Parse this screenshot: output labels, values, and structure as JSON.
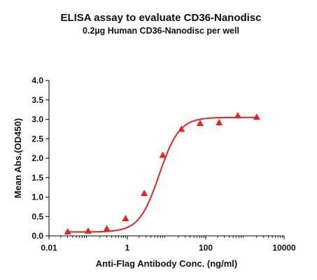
{
  "chart_data": {
    "type": "scatter",
    "title": "ELISA assay to evaluate CD36-Nanodisc",
    "subtitle": "0.2µg Human CD36-Nanodisc per well",
    "xlabel": "Anti-Flag Antibody Conc. (ng/ml)",
    "ylabel": "Mean Abs.(OD450)",
    "x_scale": "log",
    "xlim": [
      0.01,
      10000
    ],
    "ylim": [
      0,
      4.0
    ],
    "x_ticks": [
      0.01,
      1,
      100,
      10000
    ],
    "x_tick_labels": [
      "0.01",
      "1",
      "100",
      "10000"
    ],
    "y_ticks": [
      0,
      0.5,
      1.0,
      1.5,
      2.0,
      2.5,
      3.0,
      3.5,
      4.0
    ],
    "y_tick_labels": [
      "0.0",
      "0.5",
      "1.0",
      "1.5",
      "2.0",
      "2.5",
      "3.0",
      "3.5",
      "4.0"
    ],
    "grid": false,
    "legend": "none",
    "series": [
      {
        "color": "#e8231f",
        "marker": "triangle",
        "fit": "four-parameter logistic curve",
        "x": [
          0.03,
          0.1,
          0.3,
          0.9,
          2.7,
          8,
          24,
          72,
          220,
          660,
          2000
        ],
        "y": [
          0.11,
          0.13,
          0.19,
          0.45,
          1.1,
          2.08,
          2.75,
          2.9,
          2.92,
          3.1,
          3.06
        ]
      }
    ],
    "fit_params": {
      "bottom": 0.1,
      "top": 3.05,
      "ec50": 6.5,
      "hill": 1.7
    }
  }
}
